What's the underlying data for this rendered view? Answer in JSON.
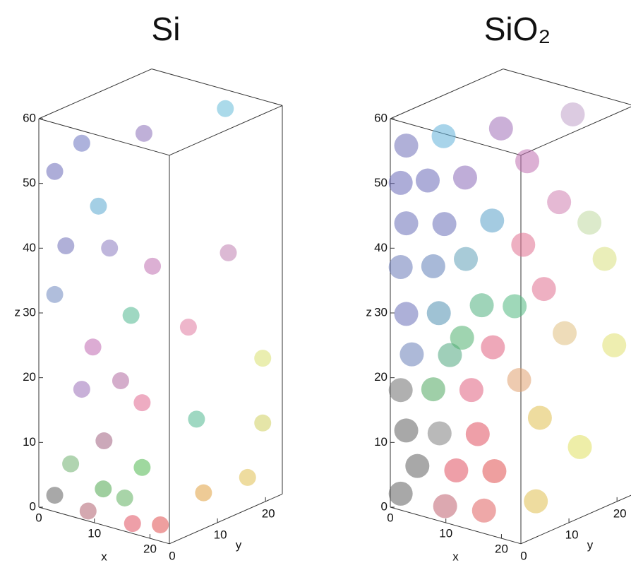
{
  "chart_data": [
    {
      "type": "scatter3d",
      "title": "Si",
      "xlabel": "x",
      "ylabel": "y",
      "zlabel": "z",
      "xlim": [
        0,
        23.5
      ],
      "ylim": [
        0,
        23.5
      ],
      "zlim": [
        0,
        60
      ],
      "xticks": [
        0,
        10,
        20
      ],
      "yticks": [
        0,
        10,
        20
      ],
      "zticks": [
        0,
        10,
        20,
        30,
        40,
        50,
        60
      ],
      "series": [
        {
          "x": [
            2,
            6,
            12,
            18,
            9,
            4,
            11,
            17,
            2,
            14,
            8,
            13,
            6,
            16,
            20,
            22,
            23,
            10,
            16,
            4,
            2,
            8,
            16,
            21,
            21,
            22,
            12,
            23,
            18,
            9
          ],
          "y": [
            1,
            2,
            8,
            18,
            2,
            1,
            2,
            4,
            1,
            3,
            2,
            2,
            2,
            3,
            8,
            14,
            20,
            2,
            3,
            2,
            1,
            1,
            1,
            1,
            10,
            18,
            4,
            20,
            12,
            3
          ],
          "z": [
            52,
            57,
            58,
            60,
            48,
            41,
            42,
            40,
            33,
            32,
            26,
            22,
            19,
            19,
            30,
            40,
            22,
            12,
            9,
            7,
            2,
            1,
            1,
            2,
            4,
            4,
            3,
            12,
            14,
            4
          ],
          "colors": [
            "#6a6ab8",
            "#6a72c0",
            "#8a70b8",
            "#66bcd8",
            "#5aa8d0",
            "#7070b8",
            "#8a7ac0",
            "#c070b0",
            "#7088c0",
            "#50b890",
            "#c068b0",
            "#b06aa0",
            "#9a70b8",
            "#e06890",
            "#e07aa0",
            "#c080b0",
            "#d8e070",
            "#a06080",
            "#50b850",
            "#70b070",
            "#606060",
            "#b06070",
            "#e05060",
            "#e05050",
            "#e0a040",
            "#e0c050",
            "#60b060",
            "#d0d060",
            "#50b890",
            "#50a850"
          ]
        }
      ]
    },
    {
      "type": "scatter3d",
      "title": "SiO₂",
      "xlabel": "x",
      "ylabel": "y",
      "zlabel": "z",
      "xlim": [
        0,
        23.5
      ],
      "ylim": [
        0,
        23.5
      ],
      "zlim": [
        0,
        60
      ],
      "xticks": [
        0,
        10,
        20
      ],
      "yticks": [
        0,
        10,
        20
      ],
      "zticks": [
        0,
        10,
        20,
        30,
        40,
        50,
        60
      ],
      "series": [
        {
          "x": [
            2,
            7,
            13,
            19,
            1,
            5,
            10,
            16,
            2,
            8,
            14,
            20,
            1,
            6,
            11,
            17,
            22,
            2,
            7,
            13,
            19,
            23,
            3,
            9,
            15,
            21,
            1,
            6,
            12,
            18,
            23,
            2,
            8,
            14,
            20,
            4,
            11,
            17,
            22,
            1,
            9,
            16,
            21,
            12,
            6
          ],
          "y": [
            1,
            3,
            8,
            16,
            1,
            2,
            4,
            10,
            1,
            2,
            5,
            12,
            1,
            2,
            3,
            8,
            16,
            1,
            2,
            4,
            10,
            18,
            1,
            2,
            4,
            12,
            1,
            2,
            3,
            6,
            20,
            1,
            1,
            2,
            8,
            1,
            1,
            2,
            14,
            1,
            1,
            1,
            6,
            12,
            8
          ],
          "z": [
            56,
            58,
            59,
            60,
            50,
            51,
            52,
            54,
            44,
            45,
            46,
            48,
            37,
            38,
            40,
            42,
            44,
            30,
            31,
            33,
            35,
            38,
            24,
            25,
            27,
            28,
            18,
            19,
            20,
            22,
            24,
            12,
            13,
            14,
            16,
            7,
            8,
            9,
            10,
            2,
            2,
            3,
            4,
            30,
            25
          ],
          "colors": [
            "#7070b8",
            "#60b0d8",
            "#a070b8",
            "#c0a0c8",
            "#6a6ab8",
            "#6a6ab8",
            "#8a6ab8",
            "#c070b0",
            "#6a70b8",
            "#6a70b8",
            "#5aa0c8",
            "#d080b0",
            "#6a7ab8",
            "#6080b8",
            "#60a0b8",
            "#e07090",
            "#c0d8a0",
            "#6a70b8",
            "#5090b0",
            "#50b080",
            "#e07090",
            "#d8e080",
            "#6a80b8",
            "#50a880",
            "#e06080",
            "#e0c080",
            "#707070",
            "#50a860",
            "#e06080",
            "#e0a070",
            "#e0e070",
            "#606060",
            "#808080",
            "#e05060",
            "#e0c050",
            "#606060",
            "#e05060",
            "#e05050",
            "#e0e060",
            "#606060",
            "#c06070",
            "#e06060",
            "#e0c050",
            "#50b880",
            "#50b070"
          ]
        }
      ]
    }
  ]
}
